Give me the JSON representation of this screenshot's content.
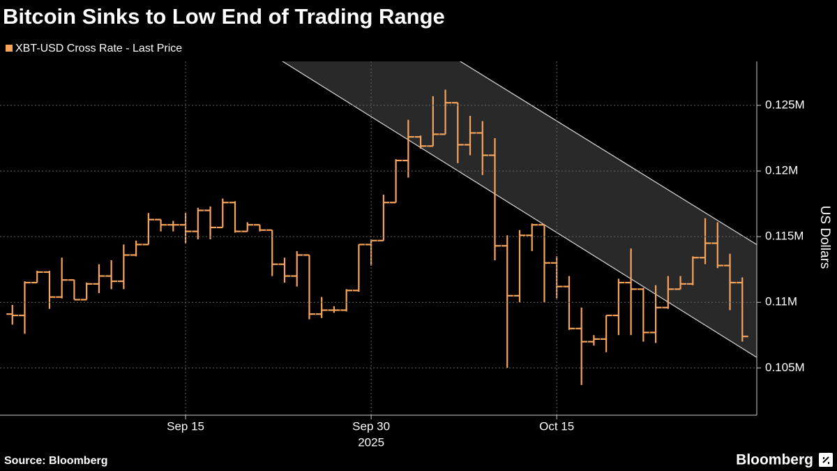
{
  "chart_data": {
    "type": "ohlc",
    "title": "Bitcoin Sinks to Low End of Trading Range",
    "y_axis_label": "US Dollars",
    "source": "Source: Bloomberg",
    "logo": "Bloomberg",
    "x_year_label": "2025",
    "x": [
      "2025-09-01",
      "2025-09-02",
      "2025-09-03",
      "2025-09-04",
      "2025-09-05",
      "2025-09-06",
      "2025-09-07",
      "2025-09-08",
      "2025-09-09",
      "2025-09-10",
      "2025-09-11",
      "2025-09-12",
      "2025-09-13",
      "2025-09-14",
      "2025-09-15",
      "2025-09-16",
      "2025-09-17",
      "2025-09-18",
      "2025-09-19",
      "2025-09-20",
      "2025-09-21",
      "2025-09-22",
      "2025-09-23",
      "2025-09-24",
      "2025-09-25",
      "2025-09-26",
      "2025-09-27",
      "2025-09-28",
      "2025-09-29",
      "2025-09-30",
      "2025-10-01",
      "2025-10-02",
      "2025-10-03",
      "2025-10-04",
      "2025-10-05",
      "2025-10-06",
      "2025-10-07",
      "2025-10-08",
      "2025-10-09",
      "2025-10-10",
      "2025-10-11",
      "2025-10-12",
      "2025-10-13",
      "2025-10-14",
      "2025-10-15",
      "2025-10-16",
      "2025-10-17",
      "2025-10-18",
      "2025-10-19",
      "2025-10-20",
      "2025-10-21",
      "2025-10-22",
      "2025-10-23",
      "2025-10-24",
      "2025-10-25",
      "2025-10-26",
      "2025-10-27",
      "2025-10-28",
      "2025-10-29",
      "2025-10-30"
    ],
    "series": [
      {
        "name": "XBT-USD Cross Rate - Last Price",
        "color": "#f7a45c",
        "open": [
          109100,
          109000,
          111500,
          112300,
          110400,
          111700,
          110200,
          111400,
          112000,
          111600,
          113600,
          114400,
          116300,
          115900,
          115900,
          115400,
          117000,
          115700,
          117600,
          115400,
          115900,
          115500,
          112900,
          112000,
          113600,
          109100,
          109400,
          109400,
          110900,
          114400,
          114700,
          117600,
          120800,
          122600,
          121900,
          122800,
          125200,
          122000,
          122900,
          121200,
          114300,
          110500,
          115100,
          115900,
          113000,
          111200,
          108000,
          107000,
          107200,
          109000,
          111500,
          111000,
          107700,
          109600,
          111000,
          111400,
          113400,
          114500,
          112800,
          111500
        ],
        "high": [
          109800,
          111600,
          112400,
          112400,
          113400,
          111700,
          111500,
          112900,
          113200,
          114400,
          114700,
          116800,
          116300,
          116200,
          116800,
          117200,
          117300,
          117900,
          117700,
          116100,
          115900,
          115500,
          113400,
          113900,
          113600,
          110400,
          109700,
          111000,
          114400,
          114800,
          118200,
          120900,
          123900,
          122700,
          125700,
          126200,
          125200,
          124200,
          123800,
          122500,
          115100,
          115500,
          116000,
          115900,
          113500,
          112000,
          109600,
          107500,
          109000,
          111800,
          114100,
          111100,
          111300,
          112000,
          112000,
          113500,
          116400,
          116100,
          113700,
          111900
        ],
        "low": [
          108300,
          107600,
          111500,
          109500,
          110300,
          110200,
          110200,
          110700,
          111000,
          111000,
          113500,
          114400,
          115400,
          115400,
          114500,
          114800,
          114800,
          115700,
          115300,
          115400,
          115400,
          112000,
          111500,
          111200,
          108700,
          108800,
          109200,
          109300,
          110800,
          112800,
          114700,
          117600,
          119500,
          121700,
          121900,
          122800,
          120600,
          121200,
          119700,
          113200,
          105000,
          110000,
          113900,
          110000,
          110300,
          107900,
          103700,
          106700,
          106200,
          107500,
          107500,
          107000,
          106900,
          109500,
          111000,
          111300,
          112900,
          112600,
          109400,
          107000
        ],
        "close": [
          109000,
          111500,
          112300,
          110400,
          111700,
          110200,
          111400,
          112000,
          111600,
          113600,
          114400,
          116300,
          115900,
          115900,
          115400,
          117000,
          115700,
          117600,
          115400,
          115900,
          115500,
          112900,
          112000,
          113600,
          109100,
          109400,
          109400,
          110900,
          114400,
          114700,
          117600,
          120800,
          122600,
          121900,
          122800,
          125200,
          122000,
          122900,
          121200,
          114300,
          110500,
          115100,
          115900,
          113000,
          111200,
          108000,
          107000,
          107200,
          109000,
          111500,
          111000,
          107700,
          109600,
          111000,
          111400,
          113400,
          114500,
          112800,
          111500,
          107400
        ]
      }
    ],
    "channel": {
      "lower": {
        "x": [
          "2025-09-24",
          "2025-10-31"
        ],
        "values": [
          127670,
          105900
        ]
      },
      "upper": {
        "x": [
          "2025-10-08",
          "2025-10-31"
        ],
        "values": [
          127890,
          114490
        ]
      }
    },
    "xlim": [
      "2025-08-31",
      "2025-10-31"
    ],
    "xticks": [
      {
        "value": "2025-09-15",
        "label": "Sep 15"
      },
      {
        "value": "2025-09-30",
        "label": "Sep 30"
      },
      {
        "value": "2025-10-15",
        "label": "Oct 15"
      }
    ],
    "ylim": [
      101400,
      128350
    ],
    "yticks": [
      {
        "value": 105000,
        "label": "0.105M"
      },
      {
        "value": 110000,
        "label": "0.11M"
      },
      {
        "value": 115000,
        "label": "0.115M"
      },
      {
        "value": 120000,
        "label": "0.12M"
      },
      {
        "value": 125000,
        "label": "0.125M"
      }
    ],
    "grid": true,
    "y_axis_side": "right"
  }
}
